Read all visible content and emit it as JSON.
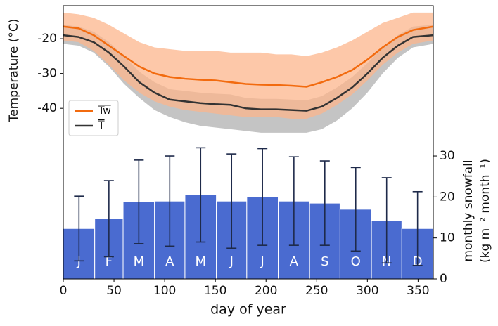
{
  "chart_data": [
    {
      "type": "line",
      "ylabel": "Temperature (°C)",
      "xlim": [
        0,
        365
      ],
      "ylim": [
        -89,
        -10.5
      ],
      "yticks": [
        -40,
        -30,
        -20
      ],
      "legend": "center left",
      "x": [
        0,
        15,
        30,
        45,
        60,
        75,
        90,
        105,
        120,
        135,
        150,
        165,
        180,
        195,
        210,
        225,
        240,
        255,
        270,
        285,
        300,
        315,
        330,
        345,
        365
      ],
      "series": [
        {
          "name": "T",
          "color": "#333333",
          "band_color": "#c4c4c4",
          "values": [
            -19,
            -19.5,
            -21,
            -24,
            -28,
            -32.5,
            -35.5,
            -37.5,
            -38,
            -38.5,
            -38.8,
            -39,
            -40,
            -40.3,
            -40.3,
            -40.5,
            -40.7,
            -39.5,
            -37,
            -34,
            -30,
            -25.5,
            -22,
            -19.5,
            -19
          ],
          "upper": [
            -16,
            -16.5,
            -18,
            -21,
            -25,
            -29.5,
            -32.5,
            -34.5,
            -35,
            -35.5,
            -35.8,
            -36,
            -37,
            -37.3,
            -37.3,
            -37.5,
            -37.7,
            -36.5,
            -34,
            -31,
            -27,
            -22.5,
            -19,
            -16.5,
            -16
          ],
          "lower": [
            -21.5,
            -22,
            -24,
            -28,
            -33,
            -37,
            -40.5,
            -42.5,
            -44,
            -45,
            -45.5,
            -46,
            -46.5,
            -47,
            -47,
            -47,
            -47,
            -46,
            -43.5,
            -40,
            -35.5,
            -30,
            -25.5,
            -22.5,
            -21.5
          ]
        },
        {
          "name": "Tw",
          "color": "#f26b0f",
          "band_color": "#fcb68c",
          "values": [
            -16.5,
            -17,
            -19,
            -22,
            -25,
            -28,
            -30,
            -31,
            -31.5,
            -31.8,
            -32,
            -32.5,
            -33,
            -33.2,
            -33.3,
            -33.5,
            -33.8,
            -32.5,
            -31,
            -29,
            -26,
            -22.5,
            -19.5,
            -17.5,
            -16.5
          ],
          "upper": [
            -12.5,
            -13,
            -14,
            -16,
            -18.5,
            -21,
            -22.5,
            -23,
            -23.5,
            -23.5,
            -23.5,
            -24,
            -24,
            -24,
            -24.5,
            -24.5,
            -25,
            -24,
            -22.5,
            -20.5,
            -18,
            -15.5,
            -14,
            -12.5,
            -12.5
          ],
          "lower": [
            -20.5,
            -21,
            -23.5,
            -27.5,
            -32,
            -35.5,
            -38,
            -39.5,
            -40.5,
            -41,
            -41.5,
            -42,
            -42.5,
            -42.5,
            -42.5,
            -43,
            -43,
            -41.5,
            -39,
            -36,
            -32,
            -27.5,
            -24,
            -21.5,
            -20.5
          ]
        }
      ]
    },
    {
      "type": "histogram",
      "xlabel": "day of year",
      "y2label": [
        "monthly snowfall",
        "(kg m⁻² month⁻¹)"
      ],
      "xlim": [
        0,
        365
      ],
      "xticks": [
        0,
        50,
        100,
        150,
        200,
        250,
        300,
        350
      ],
      "y2lim": [
        0,
        66.7
      ],
      "y2ticks": [
        0,
        10,
        20,
        30
      ],
      "color": "#4a6bd0",
      "error_color": "#1e2a4a",
      "bins": [
        0,
        31,
        59,
        90,
        120,
        151,
        181,
        212,
        243,
        273,
        304,
        334,
        365
      ],
      "categories": [
        "J",
        "F",
        "M",
        "A",
        "M",
        "J",
        "J",
        "A",
        "S",
        "O",
        "N",
        "D"
      ],
      "values": [
        12.3,
        14.7,
        18.8,
        19,
        20.5,
        19,
        20,
        19,
        18.5,
        17,
        14.3,
        12.3
      ],
      "errors": [
        7.9,
        9.3,
        10.2,
        11,
        11.5,
        11.5,
        11.8,
        10.8,
        10.3,
        10.2,
        10.4,
        9
      ]
    }
  ]
}
